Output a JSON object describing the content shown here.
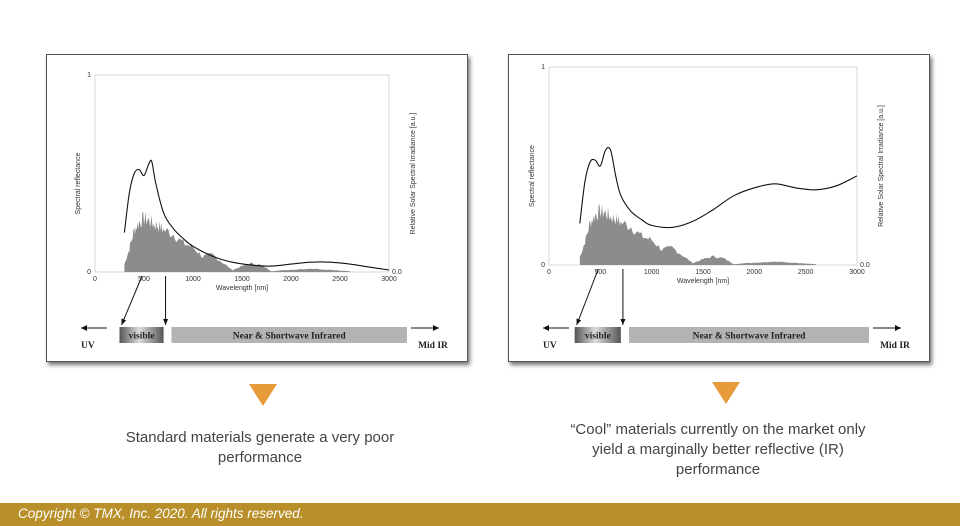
{
  "chart_data": [
    {
      "type": "line",
      "title": "",
      "xlabel": "Wavelength [nm]",
      "ylabel_left": "Spectral reflectance",
      "ylabel_right": "Relative Solar Spectral Irradiance [a.u.]",
      "xlim": [
        0,
        3000
      ],
      "ylim": [
        0,
        1
      ],
      "x_ticks": [
        "0",
        "500",
        "1000",
        "1500",
        "2000",
        "2500",
        "3000"
      ],
      "y_ticks_left": [
        "0",
        "1"
      ],
      "y_ticks_right": [
        "0.0"
      ],
      "series": [
        {
          "x": [
            300,
            350,
            400,
            450,
            500,
            550,
            580,
            620,
            700,
            800,
            900,
            1000,
            1200,
            1400,
            1600,
            1800,
            2000,
            2200,
            2400,
            2600,
            2800,
            3000
          ],
          "y": [
            0.2,
            0.4,
            0.5,
            0.52,
            0.49,
            0.55,
            0.56,
            0.45,
            0.3,
            0.22,
            0.17,
            0.13,
            0.08,
            0.05,
            0.035,
            0.03,
            0.04,
            0.05,
            0.05,
            0.04,
            0.025,
            0.01
          ]
        },
        {
          "x": [
            300,
            350,
            400,
            450,
            500,
            550,
            600,
            650,
            700,
            800,
            900,
            1000,
            1100,
            1200,
            1300,
            1400,
            1500,
            1600,
            1700,
            1800,
            2000,
            2200,
            2400,
            2600
          ],
          "y": [
            0.04,
            0.12,
            0.22,
            0.26,
            0.28,
            0.27,
            0.25,
            0.24,
            0.22,
            0.2,
            0.15,
            0.13,
            0.08,
            0.09,
            0.05,
            0.01,
            0.03,
            0.045,
            0.035,
            0.005,
            0.012,
            0.018,
            0.012,
            0.004
          ]
        }
      ],
      "bands": [
        "UV",
        "visible",
        "Near  & Shortwave Infrared",
        "Mid IR"
      ]
    },
    {
      "type": "line",
      "title": "",
      "xlabel": "Wavelength [nm]",
      "ylabel_left": "Spectral reflectance",
      "ylabel_right": "Relative Solar Spectral Irradiance [a.u.]",
      "xlim": [
        0,
        3000
      ],
      "ylim": [
        0,
        1
      ],
      "x_ticks": [
        "0",
        "500",
        "1000",
        "1500",
        "2000",
        "2500",
        "3000"
      ],
      "y_ticks_left": [
        "0",
        "1"
      ],
      "y_ticks_right": [
        "0.0"
      ],
      "series": [
        {
          "x": [
            300,
            350,
            400,
            450,
            500,
            550,
            600,
            650,
            700,
            800,
            900,
            1000,
            1200,
            1400,
            1600,
            1800,
            2000,
            2200,
            2400,
            2600,
            2800,
            3000
          ],
          "y": [
            0.21,
            0.42,
            0.52,
            0.53,
            0.5,
            0.58,
            0.58,
            0.45,
            0.35,
            0.27,
            0.23,
            0.2,
            0.19,
            0.22,
            0.28,
            0.35,
            0.39,
            0.41,
            0.39,
            0.38,
            0.4,
            0.45
          ]
        },
        {
          "x": [
            300,
            350,
            400,
            450,
            500,
            550,
            600,
            650,
            700,
            800,
            900,
            1000,
            1100,
            1200,
            1300,
            1400,
            1500,
            1600,
            1700,
            1800,
            2000,
            2200,
            2400,
            2600
          ],
          "y": [
            0.04,
            0.12,
            0.22,
            0.26,
            0.28,
            0.27,
            0.25,
            0.24,
            0.22,
            0.2,
            0.15,
            0.13,
            0.08,
            0.09,
            0.05,
            0.01,
            0.03,
            0.045,
            0.035,
            0.005,
            0.012,
            0.018,
            0.012,
            0.004
          ]
        }
      ],
      "bands": [
        "UV",
        "visible",
        "Near  & Shortwave Infrared",
        "Mid IR"
      ]
    }
  ],
  "captions": {
    "left": [
      "Standard materials generate a very poor",
      "performance"
    ],
    "right": [
      "“Cool” materials currently on the market only",
      "yield a marginally better reflective (IR)",
      "performance"
    ]
  },
  "footer": {
    "copyright": "Copyright © TMX, Inc. 2020. All rights reserved."
  },
  "colors": {
    "accent": "#e69a3a",
    "footer_bg": "#b98f2a",
    "irradiance_fill": "#8c8c8c",
    "band_fill": "#b3b3b3"
  }
}
